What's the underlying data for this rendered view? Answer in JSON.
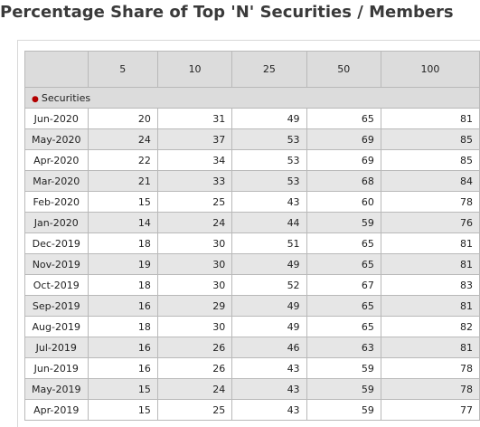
{
  "page": {
    "title": "Percentage Share of Top 'N' Securities / Members"
  },
  "table": {
    "corner": "",
    "columns": [
      "5",
      "10",
      "25",
      "50",
      "100"
    ],
    "section_label": "Securities",
    "rows": [
      {
        "date": "Jun-2020",
        "values": [
          "20",
          "31",
          "49",
          "65",
          "81"
        ]
      },
      {
        "date": "May-2020",
        "values": [
          "24",
          "37",
          "53",
          "69",
          "85"
        ]
      },
      {
        "date": "Apr-2020",
        "values": [
          "22",
          "34",
          "53",
          "69",
          "85"
        ]
      },
      {
        "date": "Mar-2020",
        "values": [
          "21",
          "33",
          "53",
          "68",
          "84"
        ]
      },
      {
        "date": "Feb-2020",
        "values": [
          "15",
          "25",
          "43",
          "60",
          "78"
        ]
      },
      {
        "date": "Jan-2020",
        "values": [
          "14",
          "24",
          "44",
          "59",
          "76"
        ]
      },
      {
        "date": "Dec-2019",
        "values": [
          "18",
          "30",
          "51",
          "65",
          "81"
        ]
      },
      {
        "date": "Nov-2019",
        "values": [
          "19",
          "30",
          "49",
          "65",
          "81"
        ]
      },
      {
        "date": "Oct-2019",
        "values": [
          "18",
          "30",
          "52",
          "67",
          "83"
        ]
      },
      {
        "date": "Sep-2019",
        "values": [
          "16",
          "29",
          "49",
          "65",
          "81"
        ]
      },
      {
        "date": "Aug-2019",
        "values": [
          "18",
          "30",
          "49",
          "65",
          "82"
        ]
      },
      {
        "date": "Jul-2019",
        "values": [
          "16",
          "26",
          "46",
          "63",
          "81"
        ]
      },
      {
        "date": "Jun-2019",
        "values": [
          "16",
          "26",
          "43",
          "59",
          "78"
        ]
      },
      {
        "date": "May-2019",
        "values": [
          "15",
          "24",
          "43",
          "59",
          "78"
        ]
      },
      {
        "date": "Apr-2019",
        "values": [
          "15",
          "25",
          "43",
          "59",
          "77"
        ]
      }
    ]
  },
  "colors": {
    "header_bg": "#dcdcdc",
    "alt_row_bg": "#e6e6e6",
    "border": "#b9b9b9",
    "bullet": "#b30000"
  }
}
